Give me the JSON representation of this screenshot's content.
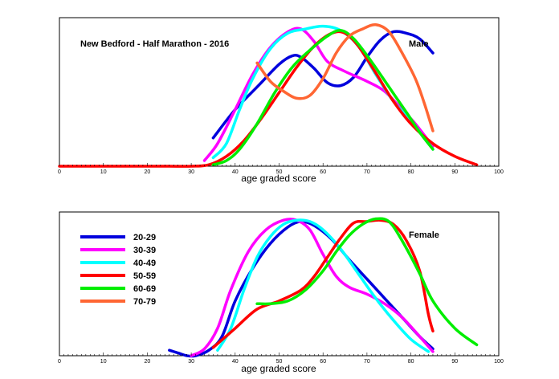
{
  "chart_data": [
    {
      "type": "line",
      "title": "New Bedford - Half Marathon - 2016",
      "panel_label": "Male",
      "xlabel": "age graded score",
      "ylabel": "",
      "xlim": [
        0,
        100
      ],
      "ylim": [
        0,
        1.05
      ],
      "x_ticks": [
        0,
        10,
        20,
        30,
        40,
        50,
        60,
        70,
        80,
        90,
        100
      ],
      "grid": false,
      "series": [
        {
          "name": "20-29",
          "color": "#0000dd",
          "points": [
            [
              35,
              0.2
            ],
            [
              40,
              0.4
            ],
            [
              45,
              0.56
            ],
            [
              50,
              0.72
            ],
            [
              53,
              0.78
            ],
            [
              55,
              0.77
            ],
            [
              58,
              0.69
            ],
            [
              61,
              0.59
            ],
            [
              64,
              0.57
            ],
            [
              67,
              0.63
            ],
            [
              70,
              0.77
            ],
            [
              73,
              0.89
            ],
            [
              76,
              0.95
            ],
            [
              79,
              0.94
            ],
            [
              82,
              0.9
            ],
            [
              85,
              0.8
            ]
          ]
        },
        {
          "name": "30-39",
          "color": "#ff00ff",
          "points": [
            [
              33,
              0.04
            ],
            [
              36,
              0.16
            ],
            [
              40,
              0.4
            ],
            [
              44,
              0.65
            ],
            [
              48,
              0.84
            ],
            [
              52,
              0.95
            ],
            [
              55,
              0.97
            ],
            [
              58,
              0.88
            ],
            [
              61,
              0.74
            ],
            [
              65,
              0.67
            ],
            [
              70,
              0.6
            ],
            [
              74,
              0.53
            ],
            [
              78,
              0.4
            ],
            [
              81,
              0.3
            ],
            [
              85,
              0.14
            ]
          ]
        },
        {
          "name": "40-49",
          "color": "#00ffff",
          "points": [
            [
              35,
              0.06
            ],
            [
              38,
              0.16
            ],
            [
              41,
              0.4
            ],
            [
              44,
              0.62
            ],
            [
              48,
              0.83
            ],
            [
              52,
              0.94
            ],
            [
              56,
              0.97
            ],
            [
              60,
              0.99
            ],
            [
              64,
              0.96
            ],
            [
              68,
              0.85
            ],
            [
              72,
              0.65
            ],
            [
              76,
              0.46
            ],
            [
              80,
              0.32
            ],
            [
              85,
              0.12
            ]
          ]
        },
        {
          "name": "50-59",
          "color": "#ff0000",
          "points": [
            [
              0,
              0.0
            ],
            [
              10,
              0.0
            ],
            [
              20,
              0.0
            ],
            [
              25,
              0.0
            ],
            [
              30,
              0.0
            ],
            [
              34,
              0.01
            ],
            [
              38,
              0.07
            ],
            [
              42,
              0.18
            ],
            [
              46,
              0.34
            ],
            [
              50,
              0.52
            ],
            [
              54,
              0.7
            ],
            [
              58,
              0.85
            ],
            [
              62,
              0.94
            ],
            [
              65,
              0.94
            ],
            [
              68,
              0.85
            ],
            [
              72,
              0.66
            ],
            [
              76,
              0.46
            ],
            [
              80,
              0.3
            ],
            [
              85,
              0.16
            ],
            [
              90,
              0.07
            ],
            [
              95,
              0.01
            ]
          ]
        },
        {
          "name": "60-69",
          "color": "#00ee00",
          "points": [
            [
              35,
              0.01
            ],
            [
              38,
              0.04
            ],
            [
              41,
              0.12
            ],
            [
              45,
              0.3
            ],
            [
              49,
              0.52
            ],
            [
              53,
              0.7
            ],
            [
              57,
              0.82
            ],
            [
              61,
              0.92
            ],
            [
              64,
              0.96
            ],
            [
              67,
              0.9
            ],
            [
              71,
              0.74
            ],
            [
              75,
              0.56
            ],
            [
              79,
              0.38
            ],
            [
              82,
              0.24
            ],
            [
              85,
              0.12
            ]
          ]
        },
        {
          "name": "70-79",
          "color": "#ff6633",
          "points": [
            [
              45,
              0.73
            ],
            [
              48,
              0.6
            ],
            [
              51,
              0.53
            ],
            [
              54,
              0.48
            ],
            [
              57,
              0.5
            ],
            [
              60,
              0.62
            ],
            [
              63,
              0.8
            ],
            [
              66,
              0.92
            ],
            [
              69,
              0.97
            ],
            [
              72,
              1.0
            ],
            [
              75,
              0.95
            ],
            [
              78,
              0.8
            ],
            [
              81,
              0.62
            ],
            [
              83,
              0.45
            ],
            [
              85,
              0.25
            ]
          ]
        }
      ]
    },
    {
      "type": "line",
      "title": "",
      "panel_label": "Female",
      "xlabel": "age graded score",
      "ylabel": "",
      "xlim": [
        0,
        100
      ],
      "ylim": [
        0,
        1.05
      ],
      "x_ticks": [
        0,
        10,
        20,
        30,
        40,
        50,
        60,
        70,
        80,
        90,
        100
      ],
      "grid": false,
      "legend_position": "top-left",
      "series": [
        {
          "name": "20-29",
          "color": "#0000dd",
          "points": [
            [
              25,
              0.04
            ],
            [
              27,
              0.02
            ],
            [
              29,
              0.0
            ],
            [
              31,
              0.0
            ],
            [
              34,
              0.04
            ],
            [
              37,
              0.14
            ],
            [
              40,
              0.4
            ],
            [
              44,
              0.64
            ],
            [
              48,
              0.82
            ],
            [
              52,
              0.94
            ],
            [
              55,
              0.98
            ],
            [
              58,
              0.95
            ],
            [
              62,
              0.85
            ],
            [
              66,
              0.7
            ],
            [
              70,
              0.56
            ],
            [
              74,
              0.42
            ],
            [
              78,
              0.28
            ],
            [
              82,
              0.14
            ],
            [
              85,
              0.05
            ]
          ]
        },
        {
          "name": "30-39",
          "color": "#ff00ff",
          "points": [
            [
              30,
              0.0
            ],
            [
              33,
              0.05
            ],
            [
              36,
              0.2
            ],
            [
              39,
              0.48
            ],
            [
              43,
              0.76
            ],
            [
              47,
              0.92
            ],
            [
              51,
              0.99
            ],
            [
              54,
              0.99
            ],
            [
              57,
              0.92
            ],
            [
              60,
              0.74
            ],
            [
              63,
              0.58
            ],
            [
              66,
              0.5
            ],
            [
              70,
              0.45
            ],
            [
              74,
              0.38
            ],
            [
              78,
              0.28
            ],
            [
              82,
              0.14
            ],
            [
              85,
              0.03
            ]
          ]
        },
        {
          "name": "40-49",
          "color": "#00ffff",
          "points": [
            [
              36,
              0.04
            ],
            [
              39,
              0.2
            ],
            [
              42,
              0.48
            ],
            [
              45,
              0.72
            ],
            [
              48,
              0.87
            ],
            [
              51,
              0.96
            ],
            [
              54,
              0.99
            ],
            [
              57,
              0.98
            ],
            [
              60,
              0.92
            ],
            [
              64,
              0.78
            ],
            [
              68,
              0.6
            ],
            [
              72,
              0.42
            ],
            [
              76,
              0.26
            ],
            [
              80,
              0.12
            ],
            [
              84,
              0.03
            ]
          ]
        },
        {
          "name": "50-59",
          "color": "#ff0000",
          "points": [
            [
              35,
              0.06
            ],
            [
              40,
              0.2
            ],
            [
              45,
              0.34
            ],
            [
              50,
              0.4
            ],
            [
              55,
              0.48
            ],
            [
              58,
              0.58
            ],
            [
              61,
              0.72
            ],
            [
              64,
              0.86
            ],
            [
              67,
              0.97
            ],
            [
              70,
              0.98
            ],
            [
              73,
              0.99
            ],
            [
              76,
              0.96
            ],
            [
              79,
              0.84
            ],
            [
              82,
              0.62
            ],
            [
              84,
              0.3
            ],
            [
              85,
              0.18
            ]
          ]
        },
        {
          "name": "60-69",
          "color": "#00ee00",
          "points": [
            [
              45,
              0.38
            ],
            [
              48,
              0.38
            ],
            [
              52,
              0.4
            ],
            [
              56,
              0.48
            ],
            [
              60,
              0.62
            ],
            [
              63,
              0.76
            ],
            [
              66,
              0.88
            ],
            [
              69,
              0.96
            ],
            [
              72,
              1.0
            ],
            [
              75,
              0.98
            ],
            [
              78,
              0.84
            ],
            [
              82,
              0.6
            ],
            [
              85,
              0.4
            ],
            [
              90,
              0.2
            ],
            [
              95,
              0.08
            ]
          ]
        },
        {
          "name": "70-79",
          "color": "#ff6633",
          "points": []
        }
      ]
    }
  ]
}
